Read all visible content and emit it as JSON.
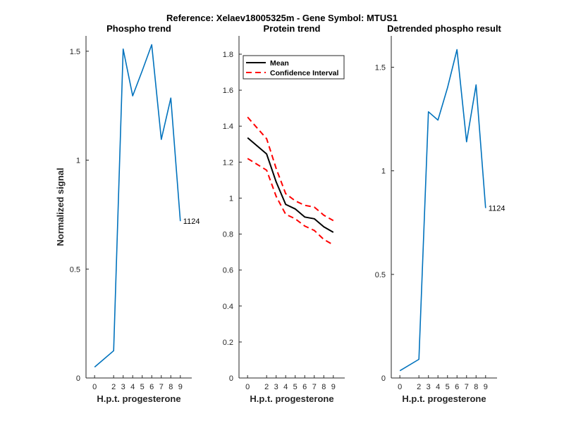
{
  "figure": {
    "suptitle": "Reference:  Xelaev18005325m - Gene Symbol:  MTUS1"
  },
  "chart_data": [
    {
      "type": "line",
      "title": "Phospho trend",
      "xlabel": "H.p.t. progesterone",
      "ylabel": "Normalized signal",
      "x": [
        0,
        2,
        3,
        4,
        5,
        6,
        7,
        8,
        9
      ],
      "x_ticks": [
        "0",
        "2",
        "3",
        "4",
        "5",
        "6",
        "7",
        "8",
        "9"
      ],
      "ylim": [
        0,
        1.5
      ],
      "y_ticks": [
        "0",
        "0.5",
        "1",
        "1.5"
      ],
      "y_tick_values": [
        0,
        0.5,
        1,
        1.5
      ],
      "series": [
        {
          "values": [
            0.05,
            0.125,
            1.51,
            1.295,
            1.41,
            1.53,
            1.095,
            1.285,
            0.72
          ],
          "color": "#0072bd"
        }
      ],
      "end_label": "1124"
    },
    {
      "type": "line",
      "title": "Protein trend",
      "xlabel": "H.p.t. progesterone",
      "ylabel": "",
      "x": [
        0,
        2,
        3,
        4,
        5,
        6,
        7,
        8,
        9
      ],
      "x_ticks": [
        "0",
        "2",
        "3",
        "4",
        "5",
        "6",
        "7",
        "8",
        "9"
      ],
      "ylim": [
        0,
        1.8
      ],
      "y_ticks": [
        "0",
        "0.2",
        "0.4",
        "0.6",
        "0.8",
        "1",
        "1.2",
        "1.4",
        "1.6",
        "1.8"
      ],
      "y_tick_values": [
        0,
        0.2,
        0.4,
        0.6,
        0.8,
        1,
        1.2,
        1.4,
        1.6,
        1.8
      ],
      "series": [
        {
          "name": "Mean",
          "values": [
            1.335,
            1.245,
            1.09,
            0.965,
            0.94,
            0.895,
            0.885,
            0.84,
            0.81
          ],
          "color": "#000000",
          "style": "solid"
        },
        {
          "name": "Confidence Interval",
          "values": [
            1.45,
            1.33,
            1.165,
            1.025,
            0.985,
            0.96,
            0.95,
            0.905,
            0.875
          ],
          "color": "#ff0000",
          "style": "dashed"
        },
        {
          "values": [
            1.22,
            1.155,
            1.01,
            0.91,
            0.885,
            0.845,
            0.82,
            0.77,
            0.74
          ],
          "color": "#ff0000",
          "style": "dashed"
        }
      ],
      "legend": {
        "placement": "top-right",
        "entries": [
          "Mean",
          "Confidence Interval"
        ]
      }
    },
    {
      "type": "line",
      "title": "Detrended phospho result",
      "xlabel": "H.p.t. progesterone",
      "ylabel": "",
      "x": [
        0,
        2,
        3,
        4,
        5,
        6,
        7,
        8,
        9
      ],
      "x_ticks": [
        "0",
        "2",
        "3",
        "4",
        "5",
        "6",
        "7",
        "8",
        "9"
      ],
      "ylim": [
        0,
        1.5
      ],
      "y_ticks": [
        "0",
        "0.5",
        "1",
        "1.5"
      ],
      "y_tick_values": [
        0,
        0.5,
        1,
        1.5
      ],
      "series": [
        {
          "values": [
            0.035,
            0.09,
            1.285,
            1.245,
            1.4,
            1.585,
            1.14,
            1.415,
            0.82
          ],
          "color": "#0072bd"
        }
      ],
      "end_label": "1124"
    }
  ]
}
